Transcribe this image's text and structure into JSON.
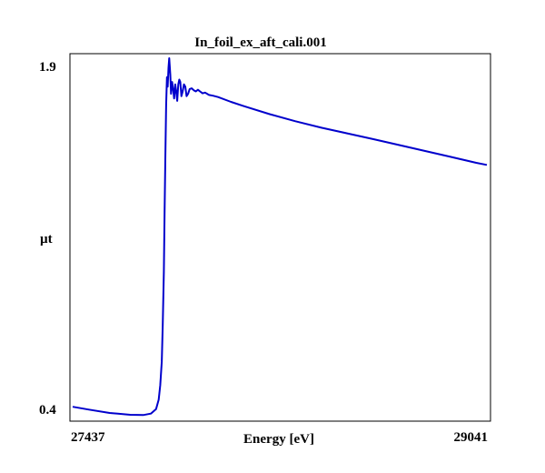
{
  "chart_data": {
    "type": "line",
    "title": "In_foil_ex_aft_cali.001",
    "xlabel": "Energy [eV]",
    "ylabel": "µt",
    "xlim": [
      27437,
      29041
    ],
    "ylim": [
      0.4,
      1.9
    ],
    "x_tick_labels": [
      "27437",
      "29041"
    ],
    "y_tick_labels": [
      "1.9",
      "0.4"
    ],
    "grid": false,
    "legend": "none",
    "series": [
      {
        "color": "#0000cc",
        "x": [
          27437,
          27500,
          27580,
          27660,
          27710,
          27740,
          27760,
          27770,
          27776,
          27782,
          27786,
          27790,
          27793,
          27796,
          27799,
          27802,
          27805,
          27808,
          27811,
          27815,
          27818,
          27822,
          27826,
          27830,
          27834,
          27838,
          27842,
          27846,
          27850,
          27854,
          27858,
          27863,
          27868,
          27873,
          27878,
          27884,
          27890,
          27898,
          27906,
          27914,
          27922,
          27930,
          27940,
          27950,
          27965,
          27980,
          28000,
          28050,
          28100,
          28200,
          28300,
          28400,
          28500,
          28600,
          28700,
          28800,
          28900,
          29000,
          29041
        ],
        "y": [
          0.43,
          0.418,
          0.404,
          0.396,
          0.395,
          0.401,
          0.42,
          0.46,
          0.52,
          0.62,
          0.78,
          1.0,
          1.25,
          1.5,
          1.7,
          1.82,
          1.78,
          1.86,
          1.9,
          1.83,
          1.75,
          1.8,
          1.77,
          1.73,
          1.79,
          1.76,
          1.72,
          1.79,
          1.81,
          1.8,
          1.74,
          1.76,
          1.79,
          1.78,
          1.74,
          1.75,
          1.77,
          1.773,
          1.765,
          1.76,
          1.767,
          1.76,
          1.752,
          1.755,
          1.745,
          1.742,
          1.736,
          1.716,
          1.698,
          1.664,
          1.634,
          1.607,
          1.583,
          1.559,
          1.534,
          1.509,
          1.484,
          1.459,
          1.45
        ]
      }
    ]
  }
}
